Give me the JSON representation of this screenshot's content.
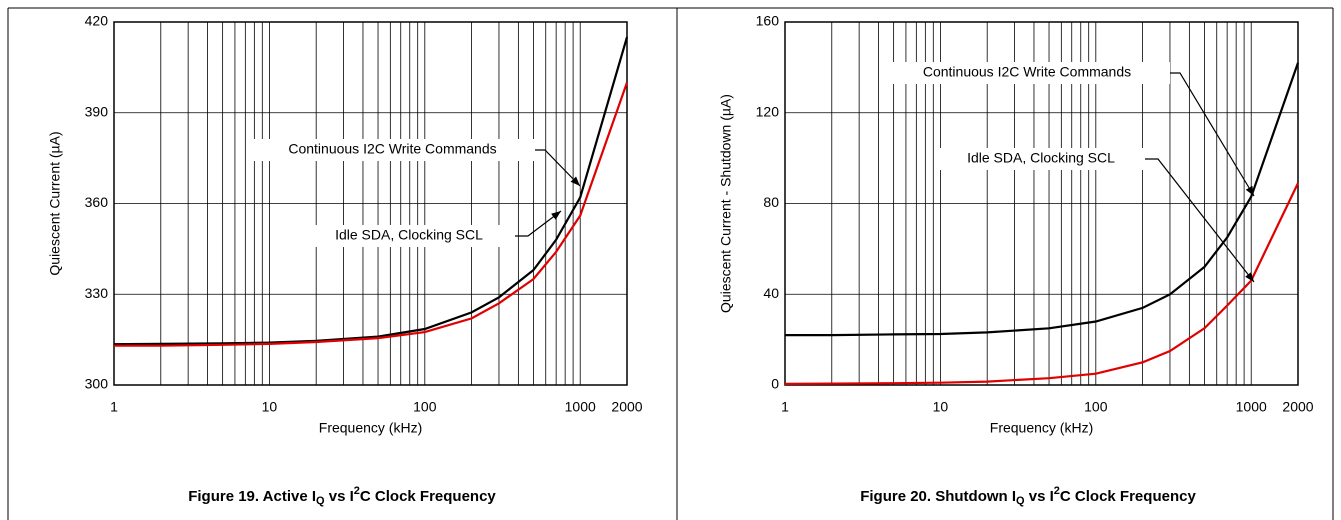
{
  "chart_data": [
    {
      "type": "line",
      "xlog": true,
      "grid": true,
      "title": [
        {
          "text": "Figure 19. Active I"
        },
        {
          "text": "Q",
          "style": "sub"
        },
        {
          "text": " vs I"
        },
        {
          "text": "2",
          "style": "sup"
        },
        {
          "text": "C Clock Frequency"
        }
      ],
      "xlabel": "Frequency (kHz)",
      "ylabel": "Quiescent Current (µA)",
      "xlim": [
        1,
        2000
      ],
      "xticks": [
        1,
        10,
        100,
        1000,
        2000
      ],
      "xminorticks": [
        2,
        3,
        4,
        5,
        6,
        7,
        8,
        9,
        20,
        30,
        40,
        50,
        60,
        70,
        80,
        90,
        200,
        300,
        400,
        500,
        600,
        700,
        800,
        900
      ],
      "ylim": [
        300,
        420
      ],
      "yticks": [
        300,
        330,
        360,
        390,
        420
      ],
      "x": [
        1,
        2,
        5,
        10,
        20,
        50,
        100,
        200,
        300,
        500,
        700,
        1000,
        2000
      ],
      "series": [
        {
          "name": "Continuous I2C Write Commands",
          "color": "#000000",
          "values": [
            313.5,
            313.6,
            313.8,
            314.0,
            314.6,
            316,
            318.5,
            324,
            329,
            338,
            348,
            362,
            415
          ]
        },
        {
          "name": "Idle SDA, Clocking SCL",
          "color": "#e00000",
          "values": [
            313,
            313,
            313.3,
            313.6,
            314.2,
            315.5,
            317.5,
            322,
            327,
            335,
            344,
            356,
            400
          ]
        }
      ]
    },
    {
      "type": "line",
      "xlog": true,
      "grid": true,
      "title": [
        {
          "text": "Figure 20. Shutdown I"
        },
        {
          "text": "Q",
          "style": "sub"
        },
        {
          "text": " vs I"
        },
        {
          "text": "2",
          "style": "sup"
        },
        {
          "text": "C Clock Frequency"
        }
      ],
      "xlabel": "Frequency (kHz)",
      "ylabel": "Quiescent Current - Shutdown (µA)",
      "xlim": [
        1,
        2000
      ],
      "xticks": [
        1,
        10,
        100,
        1000,
        2000
      ],
      "xminorticks": [
        2,
        3,
        4,
        5,
        6,
        7,
        8,
        9,
        20,
        30,
        40,
        50,
        60,
        70,
        80,
        90,
        200,
        300,
        400,
        500,
        600,
        700,
        800,
        900
      ],
      "ylim": [
        0,
        160
      ],
      "yticks": [
        0,
        40,
        80,
        120,
        160
      ],
      "x": [
        1,
        2,
        5,
        10,
        20,
        50,
        100,
        200,
        300,
        500,
        700,
        1000,
        2000
      ],
      "series": [
        {
          "name": "Continuous I2C Write Commands",
          "color": "#000000",
          "values": [
            22,
            22,
            22.3,
            22.5,
            23.2,
            25,
            28,
            34,
            40,
            52,
            65,
            83,
            142
          ]
        },
        {
          "name": "Idle SDA, Clocking SCL",
          "color": "#e00000",
          "values": [
            0.5,
            0.6,
            0.8,
            1,
            1.5,
            3,
            5,
            10,
            15,
            25,
            35,
            46,
            89
          ]
        }
      ]
    }
  ]
}
